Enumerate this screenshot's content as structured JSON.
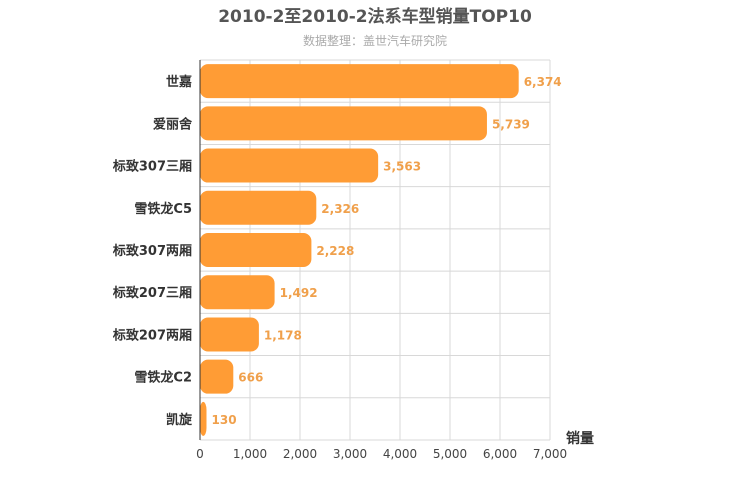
{
  "chart_data": {
    "type": "bar",
    "orientation": "horizontal",
    "title": "2010-2至2010-2法系车型销量TOP10",
    "subtitle": "数据整理：盖世汽车研究院",
    "xlabel": "销量",
    "ylabel": "",
    "categories": [
      "世嘉",
      "爱丽舍",
      "标致307三厢",
      "雪铁龙C5",
      "标致307两厢",
      "标致207三厢",
      "标致207两厢",
      "雪铁龙C2",
      "凯旋"
    ],
    "values": [
      6374,
      5739,
      3563,
      2326,
      2228,
      1492,
      1178,
      666,
      130
    ],
    "value_labels": [
      "6,374",
      "5,739",
      "3,563",
      "2,326",
      "2,228",
      "1,492",
      "1,178",
      "666",
      "130"
    ],
    "xlim": [
      0,
      7000
    ],
    "xticks": [
      0,
      1000,
      2000,
      3000,
      4000,
      5000,
      6000,
      7000
    ],
    "xtick_labels": [
      "0",
      "1,000",
      "2,000",
      "3,000",
      "4,000",
      "5,000",
      "6,000",
      "7,000"
    ],
    "grid": true,
    "legend": "none",
    "colors": {
      "bar": "#ff9c35",
      "value_label": "#f0a04b",
      "title": "#555555",
      "subtitle": "#aaaaaa",
      "grid": "#d8d8d8",
      "axis": "#333333",
      "category_label": "#333333",
      "tick_label": "#444444"
    }
  }
}
